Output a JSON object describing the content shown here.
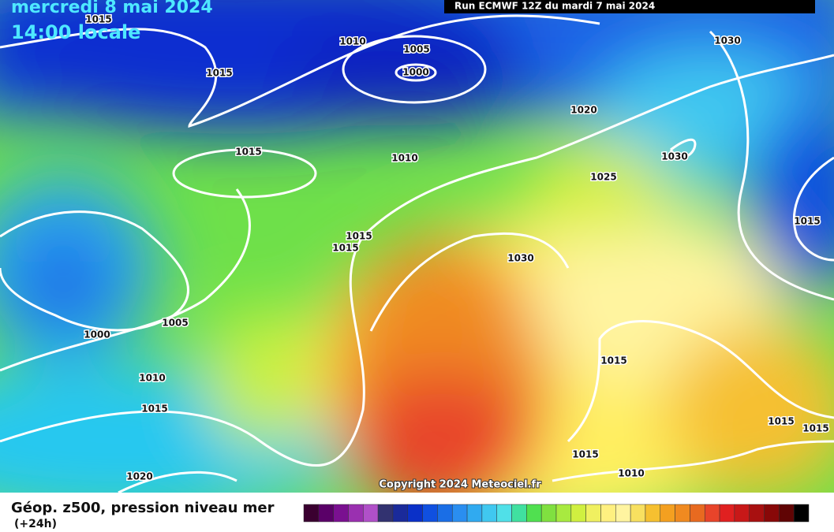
{
  "header": {
    "date": "mercredi 8 mai 2024",
    "time": "14:00 locale",
    "run": "Run ECMWF 12Z du mardi 7 mai 2024"
  },
  "copyright": "Copyright 2024 Meteociel.fr",
  "legend": {
    "title": "Géop. z500, pression niveau mer",
    "subtitle": "(+24h)"
  },
  "isobar_labels": [
    "1015",
    "1015",
    "1010",
    "1005",
    "1000",
    "1030",
    "1020",
    "1015",
    "1010",
    "1030",
    "1025",
    "1015",
    "1015",
    "1015",
    "1030",
    "1005",
    "1000",
    "1010",
    "1015",
    "1015",
    "1015",
    "1015",
    "1015",
    "1010",
    "1020"
  ]
}
